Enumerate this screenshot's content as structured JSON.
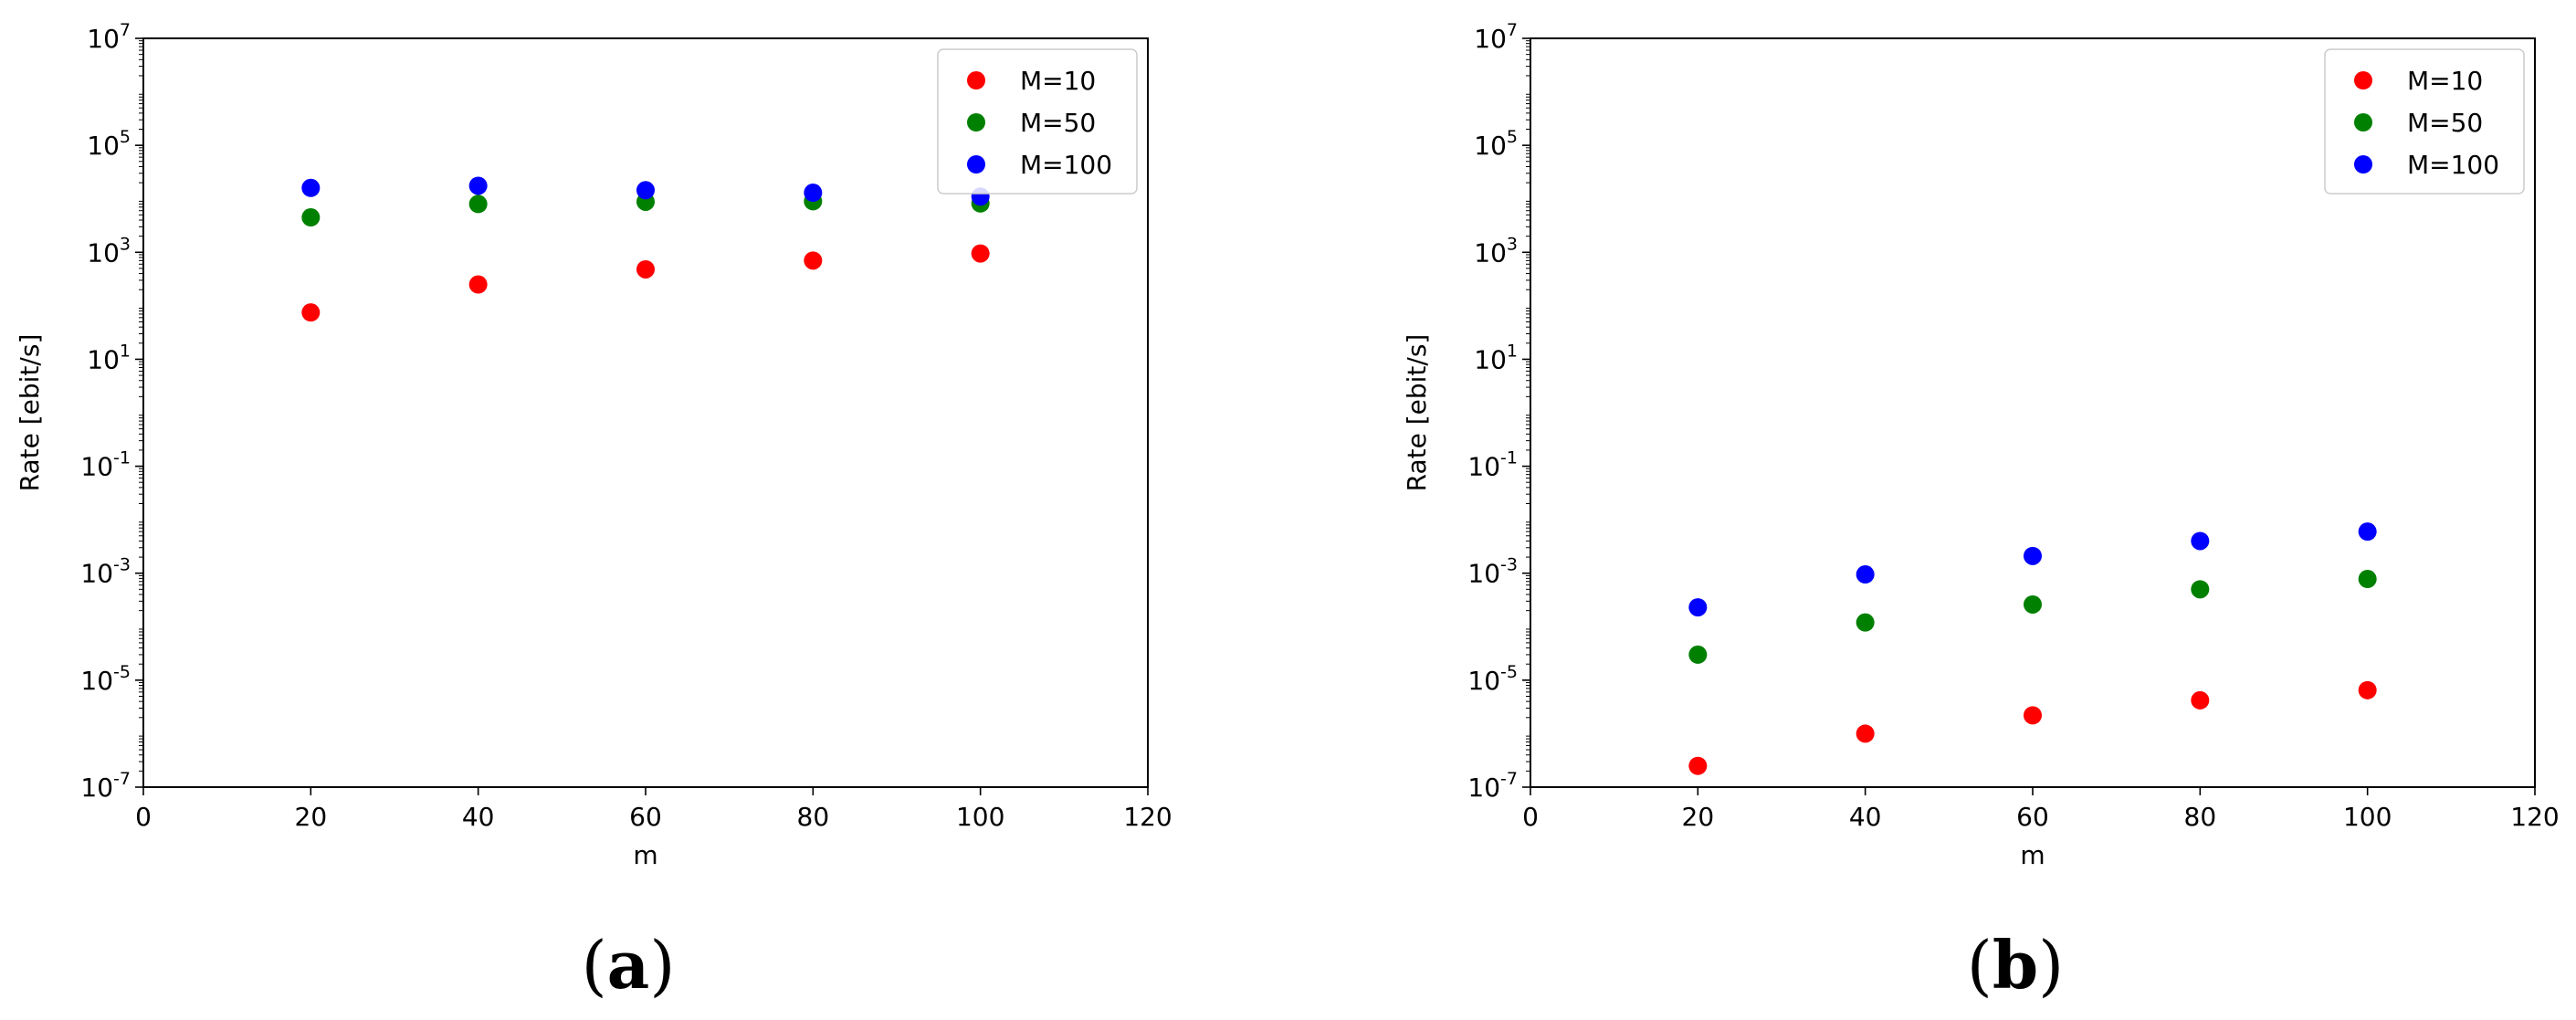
{
  "chart_data": [
    {
      "type": "scatter",
      "caption_letter": "a",
      "xlabel": "m",
      "ylabel": "Rate [ebit/s]",
      "xlim": [
        0,
        120
      ],
      "ylim": [
        1e-07,
        10000000.0
      ],
      "yscale": "log",
      "grid": false,
      "legend_position": "top-right",
      "x_ticks": [
        "0",
        "20",
        "40",
        "60",
        "80",
        "100",
        "120"
      ],
      "y_tick_exponents": [
        "7",
        "5",
        "3",
        "1",
        "-1",
        "-3",
        "-5",
        "-7"
      ],
      "series": [
        {
          "name": "M=10",
          "color": "#ff0000",
          "x": [
            20,
            40,
            60,
            80,
            100
          ],
          "y": [
            75,
            250,
            480,
            700,
            950
          ]
        },
        {
          "name": "M=50",
          "color": "#008000",
          "x": [
            20,
            40,
            60,
            80,
            100
          ],
          "y": [
            4500,
            8000,
            8800,
            9000,
            8200
          ]
        },
        {
          "name": "M=100",
          "color": "#0000ff",
          "x": [
            20,
            40,
            60,
            80,
            100
          ],
          "y": [
            16000,
            17500,
            14500,
            13000,
            11000
          ]
        }
      ]
    },
    {
      "type": "scatter",
      "caption_letter": "b",
      "xlabel": "m",
      "ylabel": "Rate [ebit/s]",
      "xlim": [
        0,
        120
      ],
      "ylim": [
        1e-07,
        10000000.0
      ],
      "yscale": "log",
      "grid": false,
      "legend_position": "top-right",
      "x_ticks": [
        "0",
        "20",
        "40",
        "60",
        "80",
        "100",
        "120"
      ],
      "y_tick_exponents": [
        "7",
        "5",
        "3",
        "1",
        "-1",
        "-3",
        "-5",
        "-7"
      ],
      "series": [
        {
          "name": "M=10",
          "color": "#ff0000",
          "x": [
            20,
            40,
            60,
            80,
            100
          ],
          "y": [
            2.5e-07,
            1e-06,
            2.2e-06,
            4.2e-06,
            6.5e-06
          ]
        },
        {
          "name": "M=50",
          "color": "#008000",
          "x": [
            20,
            40,
            60,
            80,
            100
          ],
          "y": [
            3e-05,
            0.00012,
            0.00026,
            0.0005,
            0.00078
          ]
        },
        {
          "name": "M=100",
          "color": "#0000ff",
          "x": [
            20,
            40,
            60,
            80,
            100
          ],
          "y": [
            0.00023,
            0.00095,
            0.0021,
            0.004,
            0.006
          ]
        }
      ]
    }
  ]
}
